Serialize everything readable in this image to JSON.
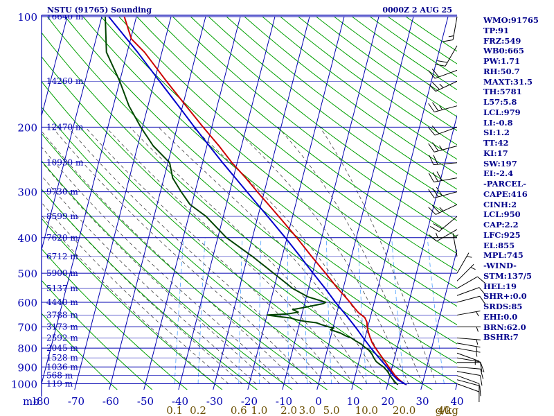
{
  "header": {
    "title": "NSTU (91765) Sounding",
    "datetime": "0000Z  2 AUG 25"
  },
  "indices": [
    "WMO:91765",
    "TP:91",
    "FRZ:549",
    "WB0:665",
    "PW:1.71",
    "RH:50.7",
    "MAXT:31.5",
    "TH:5781",
    "L57:5.8",
    "LCL:979",
    "LI:-0.8",
    "SI:1.2",
    "TT:42",
    "KI:17",
    "SW:197",
    "EI:-2.4",
    "-PARCEL-",
    "CAPE:416",
    "CINH:2",
    "LCL:950",
    "CAP:2.2",
    "LFC:925",
    "EL:855",
    "MPL:745",
    "-WIND-",
    "STM:137/5",
    "HEL:19",
    "SHR+:0.0",
    "SRDS:85",
    "EHI:0.0",
    "BRN:62.0",
    "BSHR:7"
  ],
  "colors": {
    "axis": "#0000b0",
    "dry_adiabat": "#00a000",
    "moist_adiabat": "#404040",
    "mixing_ratio": "#4aa0ff",
    "temperature": "#cc0000",
    "dewpoint": "#004400",
    "parcel": "#0000cc",
    "wind": "#000000",
    "mixing_ratio_label": "#6b4f00"
  },
  "chart_data": {
    "type": "line",
    "title": "NSTU (91765) Sounding",
    "subtitle": "0000Z  2 AUG 25",
    "pressure_axis_label": "mb",
    "pressure_ticks": [
      100,
      200,
      300,
      400,
      500,
      600,
      700,
      800,
      900,
      1000
    ],
    "temperature_ticks": [
      -80,
      -70,
      -60,
      -50,
      -40,
      -30,
      -20,
      -10,
      0,
      10,
      20,
      30,
      40
    ],
    "mixing_ratio_axis": {
      "unit": "g/kg",
      "labels": [
        "0.1",
        "0.2",
        "0.6",
        "1.0",
        "2.0",
        "3.0",
        "5.0",
        "10.0",
        "20.0",
        "40"
      ],
      "values": [
        0.1,
        0.2,
        0.6,
        1.0,
        2.0,
        3.0,
        5.0,
        10.0,
        20.0,
        40
      ]
    },
    "height_labels": [
      {
        "p": 100,
        "label": "16640 m"
      },
      {
        "p": 150,
        "label": "14260 m"
      },
      {
        "p": 200,
        "label": "12470 m"
      },
      {
        "p": 250,
        "label": "10930 m"
      },
      {
        "p": 300,
        "label": "9730 m"
      },
      {
        "p": 350,
        "label": "8599 m"
      },
      {
        "p": 400,
        "label": "7620 m"
      },
      {
        "p": 450,
        "label": "6712 m"
      },
      {
        "p": 500,
        "label": "5900 m"
      },
      {
        "p": 550,
        "label": "5137 m"
      },
      {
        "p": 600,
        "label": "4440 m"
      },
      {
        "p": 650,
        "label": "3788 m"
      },
      {
        "p": 700,
        "label": "3173 m"
      },
      {
        "p": 750,
        "label": "2592 m"
      },
      {
        "p": 800,
        "label": "2045 m"
      },
      {
        "p": 850,
        "label": "1528 m"
      },
      {
        "p": 900,
        "label": "1036 m"
      },
      {
        "p": 950,
        "label": "568 m"
      },
      {
        "p": 1000,
        "label": "119 m"
      }
    ],
    "series": [
      {
        "key": "temperature",
        "points": [
          [
            1006,
            25.5
          ],
          [
            1000,
            24.8
          ],
          [
            975,
            23.0
          ],
          [
            950,
            21.5
          ],
          [
            925,
            20.3
          ],
          [
            900,
            19.0
          ],
          [
            875,
            17.8
          ],
          [
            850,
            16.5
          ],
          [
            825,
            15.2
          ],
          [
            800,
            13.8
          ],
          [
            775,
            12.5
          ],
          [
            750,
            11.5
          ],
          [
            725,
            10.6
          ],
          [
            700,
            9.8
          ],
          [
            680,
            9.4
          ],
          [
            660,
            8.4
          ],
          [
            640,
            6.2
          ],
          [
            620,
            4.6
          ],
          [
            600,
            3.0
          ],
          [
            575,
            0.8
          ],
          [
            550,
            -1.6
          ],
          [
            500,
            -6.2
          ],
          [
            450,
            -11.5
          ],
          [
            400,
            -17.2
          ],
          [
            350,
            -24.0
          ],
          [
            300,
            -32.0
          ],
          [
            275,
            -36.4
          ],
          [
            250,
            -41.5
          ],
          [
            225,
            -46.5
          ],
          [
            200,
            -52.5
          ],
          [
            175,
            -59.0
          ],
          [
            150,
            -66.5
          ],
          [
            125,
            -75.0
          ],
          [
            115,
            -79.8
          ],
          [
            100,
            -83.5
          ]
        ]
      },
      {
        "key": "dewpoint",
        "points": [
          [
            1006,
            23.0
          ],
          [
            990,
            22.0
          ],
          [
            970,
            21.0
          ],
          [
            950,
            20.0
          ],
          [
            925,
            19.0
          ],
          [
            900,
            17.5
          ],
          [
            885,
            16.2
          ],
          [
            870,
            15.0
          ],
          [
            850,
            14.0
          ],
          [
            830,
            13.2
          ],
          [
            810,
            12.0
          ],
          [
            795,
            10.6
          ],
          [
            780,
            9.4
          ],
          [
            765,
            7.6
          ],
          [
            750,
            6.0
          ],
          [
            740,
            4.2
          ],
          [
            728,
            2.6
          ],
          [
            720,
            1.0
          ],
          [
            712,
            -0.6
          ],
          [
            705,
            0.2
          ],
          [
            698,
            -1.8
          ],
          [
            690,
            -3.6
          ],
          [
            682,
            -5.2
          ],
          [
            676,
            -8.6
          ],
          [
            670,
            -11.0
          ],
          [
            662,
            -13.0
          ],
          [
            656,
            -16.5
          ],
          [
            650,
            -20.0
          ],
          [
            645,
            -14.0
          ],
          [
            638,
            -11.2
          ],
          [
            628,
            -13.0
          ],
          [
            620,
            -10.0
          ],
          [
            612,
            -7.2
          ],
          [
            605,
            -4.6
          ],
          [
            600,
            -4.0
          ],
          [
            580,
            -9.5
          ],
          [
            550,
            -14.6
          ],
          [
            500,
            -21.2
          ],
          [
            450,
            -28.6
          ],
          [
            400,
            -37.5
          ],
          [
            350,
            -45.0
          ],
          [
            325,
            -50.5
          ],
          [
            300,
            -54.0
          ],
          [
            275,
            -57.5
          ],
          [
            250,
            -59.5
          ],
          [
            225,
            -65.5
          ],
          [
            200,
            -70.5
          ],
          [
            175,
            -75.5
          ],
          [
            150,
            -80.0
          ],
          [
            125,
            -86.0
          ],
          [
            100,
            -89.0
          ]
        ]
      },
      {
        "key": "parcel",
        "points": [
          [
            1006,
            25.5
          ],
          [
            975,
            22.5
          ],
          [
            950,
            21.0
          ],
          [
            925,
            19.8
          ],
          [
            900,
            18.5
          ],
          [
            850,
            15.5
          ],
          [
            800,
            12.5
          ],
          [
            750,
            9.5
          ],
          [
            700,
            6.4
          ],
          [
            650,
            2.8
          ],
          [
            600,
            -1.2
          ],
          [
            550,
            -5.2
          ],
          [
            500,
            -9.8
          ],
          [
            450,
            -14.8
          ],
          [
            400,
            -20.5
          ],
          [
            350,
            -27.2
          ],
          [
            300,
            -35.0
          ],
          [
            250,
            -44.2
          ],
          [
            200,
            -55.0
          ],
          [
            175,
            -61.2
          ],
          [
            150,
            -68.5
          ],
          [
            125,
            -77.0
          ],
          [
            100,
            -88.0
          ]
        ]
      }
    ],
    "wind_barbs": [
      {
        "p": 1000,
        "dir": 110,
        "speed": 10
      },
      {
        "p": 975,
        "dir": 105,
        "speed": 10
      },
      {
        "p": 950,
        "dir": 110,
        "speed": 10
      },
      {
        "p": 925,
        "dir": 100,
        "speed": 10
      },
      {
        "p": 900,
        "dir": 95,
        "speed": 10
      },
      {
        "p": 875,
        "dir": 90,
        "speed": 10
      },
      {
        "p": 850,
        "dir": 100,
        "speed": 10
      },
      {
        "p": 825,
        "dir": 110,
        "speed": 5
      },
      {
        "p": 800,
        "dir": 100,
        "speed": 5
      },
      {
        "p": 775,
        "dir": 100,
        "speed": 5
      },
      {
        "p": 750,
        "dir": 95,
        "speed": 5
      },
      {
        "p": 700,
        "dir": 90,
        "speed": 5
      },
      {
        "p": 650,
        "dir": 80,
        "speed": 5
      },
      {
        "p": 600,
        "dir": 75,
        "speed": 10
      },
      {
        "p": 575,
        "dir": 70,
        "speed": 10
      },
      {
        "p": 550,
        "dir": 60,
        "speed": 10
      },
      {
        "p": 525,
        "dir": 45,
        "speed": 5
      },
      {
        "p": 500,
        "dir": 30,
        "speed": 5
      },
      {
        "p": 450,
        "dir": 350,
        "speed": 5
      },
      {
        "p": 400,
        "dir": 270,
        "speed": 5
      },
      {
        "p": 380,
        "dir": 240,
        "speed": 10
      },
      {
        "p": 350,
        "dir": 230,
        "speed": 20
      },
      {
        "p": 325,
        "dir": 245,
        "speed": 25
      },
      {
        "p": 300,
        "dir": 255,
        "speed": 30
      },
      {
        "p": 275,
        "dir": 260,
        "speed": 30
      },
      {
        "p": 250,
        "dir": 265,
        "speed": 20
      },
      {
        "p": 225,
        "dir": 255,
        "speed": 25
      },
      {
        "p": 200,
        "dir": 250,
        "speed": 20
      },
      {
        "p": 175,
        "dir": 255,
        "speed": 25
      },
      {
        "p": 150,
        "dir": 245,
        "speed": 25
      },
      {
        "p": 140,
        "dir": 250,
        "speed": 20
      },
      {
        "p": 120,
        "dir": 210,
        "speed": 20
      },
      {
        "p": 100,
        "dir": 190,
        "speed": 15
      }
    ]
  }
}
